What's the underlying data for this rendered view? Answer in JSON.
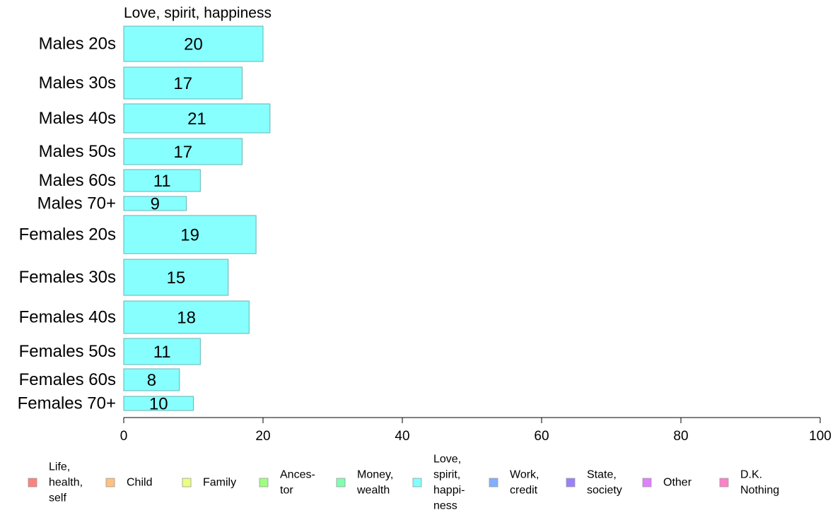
{
  "chart_data": {
    "type": "bar",
    "orientation": "horizontal",
    "title": "Love, spirit, happiness",
    "categories": [
      "Males 20s",
      "Males 30s",
      "Males 40s",
      "Males 50s",
      "Males 60s",
      "Males 70+",
      "Females 20s",
      "Females 30s",
      "Females 40s",
      "Females 50s",
      "Females 60s",
      "Females 70+"
    ],
    "values": [
      20,
      17,
      21,
      17,
      11,
      9,
      19,
      15,
      18,
      11,
      8,
      10
    ],
    "bar_color": "#88ffff",
    "bar_stroke": "#66b3b3",
    "xlim": [
      0,
      100
    ],
    "xticks": [
      "0",
      "20",
      "40",
      "60",
      "80",
      "100"
    ],
    "grid": false,
    "legend_position": "bottom",
    "legend": [
      {
        "name": "Life, health, self",
        "lines": [
          "Life,",
          "health,",
          "self"
        ],
        "color": "#ff8080"
      },
      {
        "name": "Child",
        "lines": [
          "Child"
        ],
        "color": "#ffc080"
      },
      {
        "name": "Family",
        "lines": [
          "Family"
        ],
        "color": "#eaff80"
      },
      {
        "name": "Ancestor",
        "lines": [
          "Ances-",
          "tor"
        ],
        "color": "#a0ff80"
      },
      {
        "name": "Money, wealth",
        "lines": [
          "Money,",
          "wealth"
        ],
        "color": "#80ffb0"
      },
      {
        "name": "Love, spirit, happiness",
        "lines": [
          "Love,",
          "spirit,",
          "happi-",
          "ness"
        ],
        "color": "#80ffff"
      },
      {
        "name": "Work, credit",
        "lines": [
          "Work,",
          "credit"
        ],
        "color": "#80b0ff"
      },
      {
        "name": "State, society",
        "lines": [
          "State,",
          "society"
        ],
        "color": "#9a80ff"
      },
      {
        "name": "Other",
        "lines": [
          "Other"
        ],
        "color": "#e080ff"
      },
      {
        "name": "D.K. Nothing",
        "lines": [
          "D.K.",
          "Nothing"
        ],
        "color": "#ff80c8"
      }
    ]
  }
}
